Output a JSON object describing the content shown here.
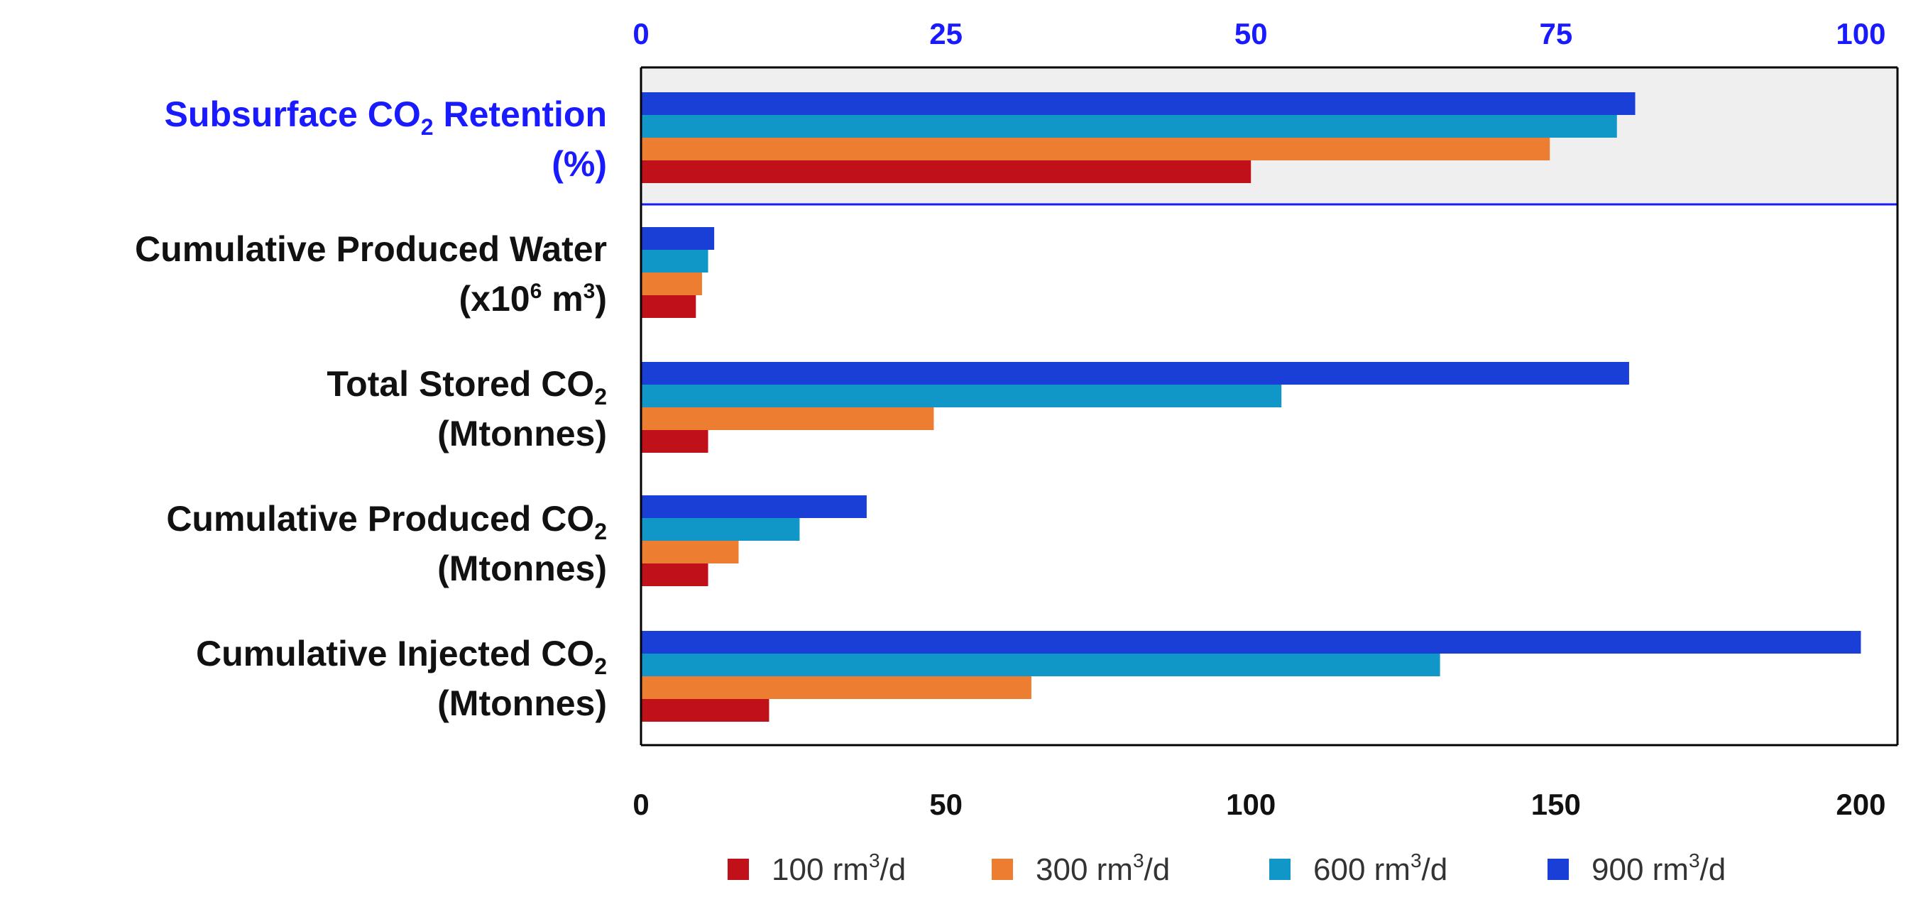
{
  "chart_data": {
    "type": "bar",
    "orientation": "horizontal",
    "categories": [
      {
        "id": "retention",
        "axis": "top",
        "line1": {
          "pre": "Subsurface CO",
          "sub": "2",
          "post": " Retention"
        },
        "line2": "(%)"
      },
      {
        "id": "produced_water",
        "axis": "bottom",
        "line1": {
          "pre": "Cumulative Produced Water",
          "sub": "",
          "post": ""
        },
        "line2": {
          "pre": "(x10",
          "sup": "6",
          "post": " m",
          "sup2": "3",
          "end": ")"
        }
      },
      {
        "id": "stored",
        "axis": "bottom",
        "line1": {
          "pre": "Total Stored CO",
          "sub": "2",
          "post": ""
        },
        "line2": "(Mtonnes)"
      },
      {
        "id": "produced_co2",
        "axis": "bottom",
        "line1": {
          "pre": "Cumulative Produced CO",
          "sub": "2",
          "post": ""
        },
        "line2": "(Mtonnes)"
      },
      {
        "id": "injected",
        "axis": "bottom",
        "line1": {
          "pre": "Cumulative Injected CO",
          "sub": "2",
          "post": ""
        },
        "line2": "(Mtonnes)"
      }
    ],
    "series": [
      {
        "name": "100 rm3/d",
        "label_pre": "100 rm",
        "label_sup": "3",
        "label_post": "/d",
        "color": "#c0111a",
        "values": [
          50,
          9,
          11,
          11,
          21
        ]
      },
      {
        "name": "300 rm3/d",
        "label_pre": "300 rm",
        "label_sup": "3",
        "label_post": "/d",
        "color": "#ed7d31",
        "values": [
          74.5,
          10,
          48,
          16,
          64
        ]
      },
      {
        "name": "600 rm3/d",
        "label_pre": "600 rm",
        "label_sup": "3",
        "label_post": "/d",
        "color": "#1196c8",
        "values": [
          80,
          11,
          105,
          26,
          131
        ]
      },
      {
        "name": "900 rm3/d",
        "label_pre": "900 rm",
        "label_sup": "3",
        "label_post": "/d",
        "color": "#1a3fd6",
        "values": [
          81.5,
          12,
          162,
          37,
          200
        ]
      }
    ],
    "bottom_axis": {
      "min": 0,
      "max": 200,
      "ticks": [
        "0",
        "50",
        "100",
        "150",
        "200"
      ],
      "tick_values": [
        0,
        50,
        100,
        150,
        200
      ]
    },
    "top_axis": {
      "min": 0,
      "max": 100,
      "ticks": [
        "0",
        "25",
        "50",
        "75",
        "100"
      ],
      "tick_values": [
        0,
        25,
        50,
        75,
        100
      ]
    },
    "colors": {
      "top_axis": "#1a1aff",
      "highlight_band": "#efefef",
      "divider": "#1a1aff"
    },
    "legend_position": "bottom-center",
    "grid": false
  }
}
